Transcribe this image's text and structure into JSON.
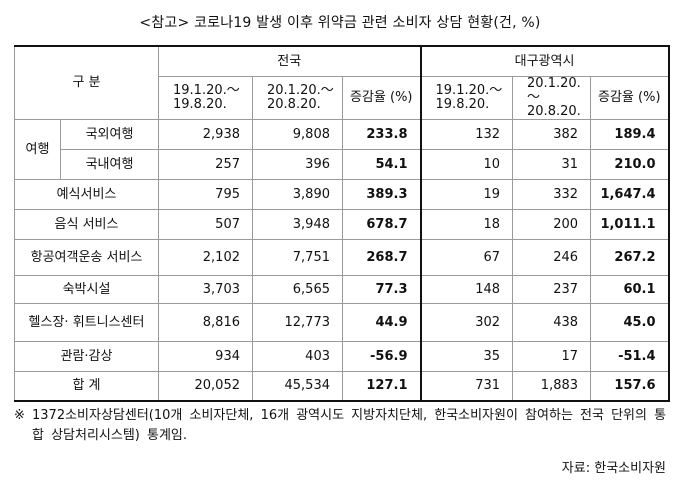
{
  "title": "<참고> 코로나19 발생 이후 위약금 관련 소비자 상담 현황(건, %)",
  "table": {
    "header": {
      "category_label": "구 분",
      "group_national": "전국",
      "group_daegu": "대구광역시",
      "period1": "19.1.20.～ 19.8.20.",
      "period2": "20.1.20.～ 20.8.20.",
      "change": "증감율 (%)"
    },
    "travel_group": "여행",
    "rows": [
      {
        "label": "국외여행",
        "n1": "2,938",
        "n2": "9,808",
        "nc": "233.8",
        "d1": "132",
        "d2": "382",
        "dc": "189.4"
      },
      {
        "label": "국내여행",
        "n1": "257",
        "n2": "396",
        "nc": "54.1",
        "d1": "10",
        "d2": "31",
        "dc": "210.0"
      },
      {
        "label": "예식서비스",
        "n1": "795",
        "n2": "3,890",
        "nc": "389.3",
        "d1": "19",
        "d2": "332",
        "dc": "1,647.4"
      },
      {
        "label": "음식 서비스",
        "n1": "507",
        "n2": "3,948",
        "nc": "678.7",
        "d1": "18",
        "d2": "200",
        "dc": "1,011.1"
      },
      {
        "label": "항공여객운송 서비스",
        "n1": "2,102",
        "n2": "7,751",
        "nc": "268.7",
        "d1": "67",
        "d2": "246",
        "dc": "267.2"
      },
      {
        "label": "숙박시설",
        "n1": "3,703",
        "n2": "6,565",
        "nc": "77.3",
        "d1": "148",
        "d2": "237",
        "dc": "60.1"
      },
      {
        "label": "헬스장· 휘트니스센터",
        "n1": "8,816",
        "n2": "12,773",
        "nc": "44.9",
        "d1": "302",
        "d2": "438",
        "dc": "45.0"
      },
      {
        "label": "관람·감상",
        "n1": "934",
        "n2": "403",
        "nc": "-56.9",
        "d1": "35",
        "d2": "17",
        "dc": "-51.4"
      },
      {
        "label": "합 계",
        "n1": "20,052",
        "n2": "45,534",
        "nc": "127.1",
        "d1": "731",
        "d2": "1,883",
        "dc": "157.6"
      }
    ]
  },
  "note": {
    "mark": "※",
    "text": "1372소비자상담센터(10개 소비자단체, 16개 광역시도 지방자치단체, 한국소비자원이 참여하는 전국 단위의 통합 상담처리시스템) 통계임."
  },
  "source": "자료: 한국소비자원"
}
